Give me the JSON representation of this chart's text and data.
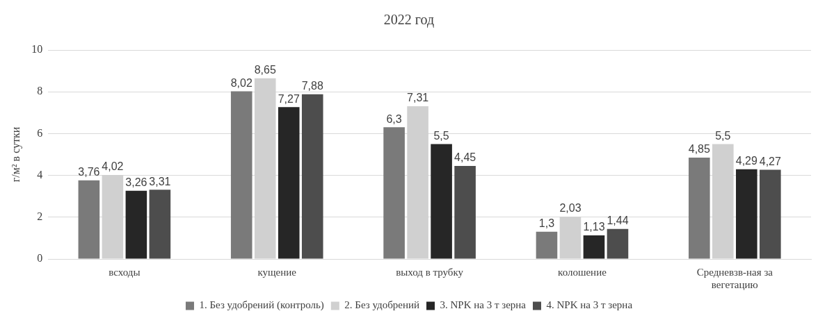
{
  "chart_data": {
    "type": "bar",
    "title": "2022 год",
    "ylabel": "г/м² в сутки",
    "categories": [
      "всходы",
      "кущение",
      "выход в трубку",
      "колошение",
      "Средневзв-ная за вегетацию"
    ],
    "series": [
      {
        "name": "1. Без удобрений (контроль)",
        "color": "#7a7a7a",
        "values": [
          3.76,
          8.02,
          6.3,
          1.3,
          4.85
        ],
        "value_labels": [
          "3,76",
          "8,02",
          "6,3",
          "1,3",
          "4,85"
        ]
      },
      {
        "name": "2. Без удобрений",
        "color": "#d0d0d0",
        "values": [
          4.02,
          8.65,
          7.31,
          2.03,
          5.5
        ],
        "value_labels": [
          "4,02",
          "8,65",
          "7,31",
          "2,03",
          "5,5"
        ]
      },
      {
        "name": "3. NPK на 3 т зерна",
        "color": "#262626",
        "values": [
          3.26,
          7.27,
          5.5,
          1.13,
          4.29
        ],
        "value_labels": [
          "3,26",
          "7,27",
          "5,5",
          "1,13",
          "4,29"
        ]
      },
      {
        "name": "4. NPK на 3 т зерна",
        "color": "#4d4d4d",
        "values": [
          3.31,
          7.88,
          4.45,
          1.44,
          4.27
        ],
        "value_labels": [
          "3,31",
          "7,88",
          "4,45",
          "1,44",
          "4,27"
        ]
      }
    ],
    "ylim": [
      0,
      10
    ],
    "yticks": [
      0,
      2,
      4,
      6,
      8,
      10
    ],
    "grid": "y",
    "legend": "bottom"
  }
}
